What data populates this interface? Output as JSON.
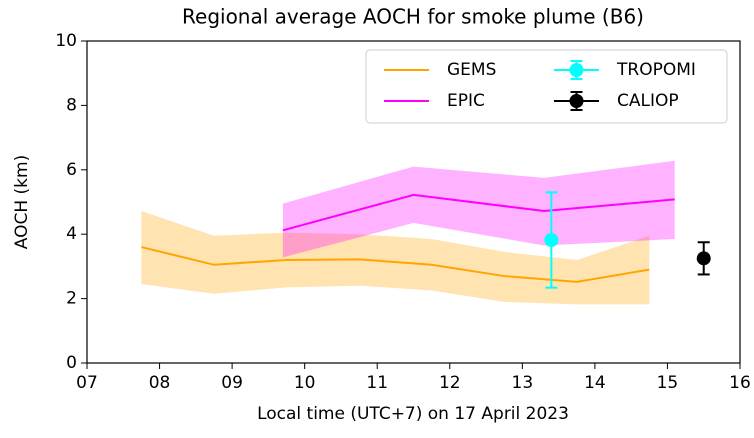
{
  "chart_data": {
    "type": "line",
    "title": "Regional average AOCH for smoke plume (B6)",
    "xlabel": "Local time (UTC+7) on 17 April 2023",
    "ylabel": "AOCH (km)",
    "xlim": [
      7,
      16
    ],
    "xticks": [
      {
        "value": 7,
        "label": "07"
      },
      {
        "value": 8,
        "label": "08"
      },
      {
        "value": 9,
        "label": "09"
      },
      10,
      11,
      12,
      13,
      14,
      15,
      16
    ],
    "ylim": [
      0,
      10
    ],
    "yticks": [
      0,
      2,
      4,
      6,
      8,
      10
    ],
    "legend": "upper right",
    "series": [
      {
        "name": "GEMS",
        "kind": "band",
        "color": "#ffa500",
        "x": [
          7.75,
          8.75,
          9.75,
          10.75,
          11.75,
          12.75,
          13.75,
          14.75
        ],
        "values": [
          3.6,
          3.05,
          3.2,
          3.22,
          3.05,
          2.7,
          2.52,
          2.9
        ],
        "upper": [
          4.72,
          3.95,
          4.05,
          4.0,
          3.85,
          3.45,
          3.2,
          3.95
        ],
        "lower": [
          2.45,
          2.15,
          2.35,
          2.4,
          2.25,
          1.9,
          1.82,
          1.82
        ]
      },
      {
        "name": "EPIC",
        "kind": "band",
        "color": "#ff00ff",
        "x": [
          9.7,
          11.5,
          13.3,
          15.1
        ],
        "values": [
          4.12,
          5.22,
          4.72,
          5.08
        ],
        "upper": [
          4.95,
          6.1,
          5.75,
          6.28
        ],
        "lower": [
          3.28,
          4.35,
          3.65,
          3.85
        ]
      },
      {
        "name": "TROPOMI",
        "kind": "errorbar",
        "color": "#00ffff",
        "x": [
          13.4
        ],
        "values": [
          3.82
        ],
        "errors": [
          1.48
        ]
      },
      {
        "name": "CALIOP",
        "kind": "errorbar",
        "color": "#000000",
        "x": [
          15.5
        ],
        "values": [
          3.25
        ],
        "errors": [
          0.5
        ]
      }
    ]
  }
}
